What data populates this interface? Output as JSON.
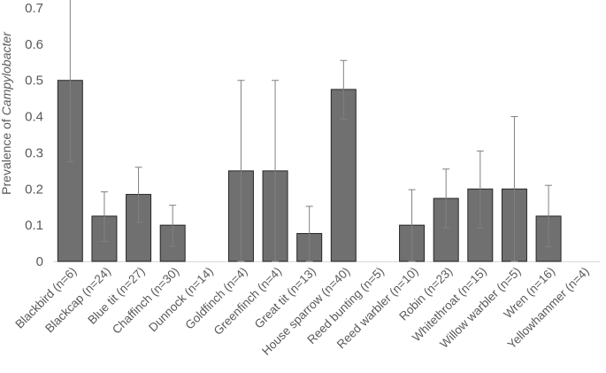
{
  "chart_data": {
    "type": "bar",
    "title": "",
    "xlabel": "",
    "ylabel": {
      "prefix": "Prevalence of ",
      "italic": "Campylobacter"
    },
    "ylim": [
      0,
      0.7
    ],
    "yticks": [
      0,
      0.1,
      0.2,
      0.3,
      0.4,
      0.5,
      0.6,
      0.7
    ],
    "ytick_labels": [
      "0",
      "0.1",
      "0.2",
      "0.3",
      "0.4",
      "0.5",
      "0.6",
      "0.7"
    ],
    "grid": false,
    "legend": "none",
    "categories": [
      "Blackbird (n=6)",
      "Blackcap (n=24)",
      "Blue tit (n=27)",
      "Chaffinch (n=30)",
      "Dunnock (n=14)",
      "Goldfinch (n=4)",
      "Greenfinch (n=4)",
      "Great tit (n=13)",
      "House sparrow (n=40)",
      "Reed bunting (n=5)",
      "Reed warbler (n=10)",
      "Robin (n=23)",
      "Whitethroat (n=15)",
      "Willow warbler (n=5)",
      "Wren (n=16)",
      "Yellowhammer (n=4)"
    ],
    "values": [
      0.5,
      0.125,
      0.185,
      0.1,
      0,
      0.25,
      0.25,
      0.077,
      0.475,
      0,
      0.1,
      0.174,
      0.2,
      0.2,
      0.125,
      0
    ],
    "error_low": [
      0.275,
      0.055,
      0.108,
      0.042,
      null,
      0,
      0,
      0,
      0.393,
      null,
      0,
      0.093,
      0.092,
      0,
      0.04,
      null
    ],
    "error_high": [
      0.725,
      0.192,
      0.26,
      0.155,
      null,
      0.5,
      0.5,
      0.152,
      0.555,
      null,
      0.198,
      0.255,
      0.305,
      0.4,
      0.21,
      null
    ],
    "colors": {
      "bar": "#707070",
      "bar_edge": "#262626",
      "error": "#808080",
      "text": "#595959"
    }
  }
}
